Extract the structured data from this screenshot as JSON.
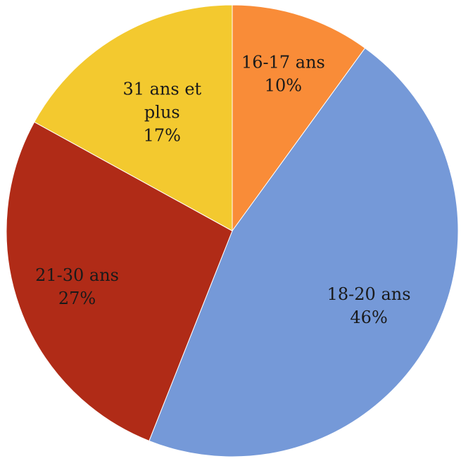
{
  "chart_data": {
    "type": "pie",
    "start_angle_deg": 0,
    "direction": "clockwise",
    "slices": [
      {
        "label": "16-17 ans",
        "value": 10,
        "value_label": "10%",
        "color": "#f98c38"
      },
      {
        "label": "18-20 ans",
        "value": 46,
        "value_label": "46%",
        "color": "#7599d8"
      },
      {
        "label": "21-30 ans",
        "value": 27,
        "value_label": "27%",
        "color": "#b02b17"
      },
      {
        "label": "31 ans et plus",
        "value": 17,
        "value_label": "17%",
        "color": "#f3c92f"
      }
    ]
  }
}
